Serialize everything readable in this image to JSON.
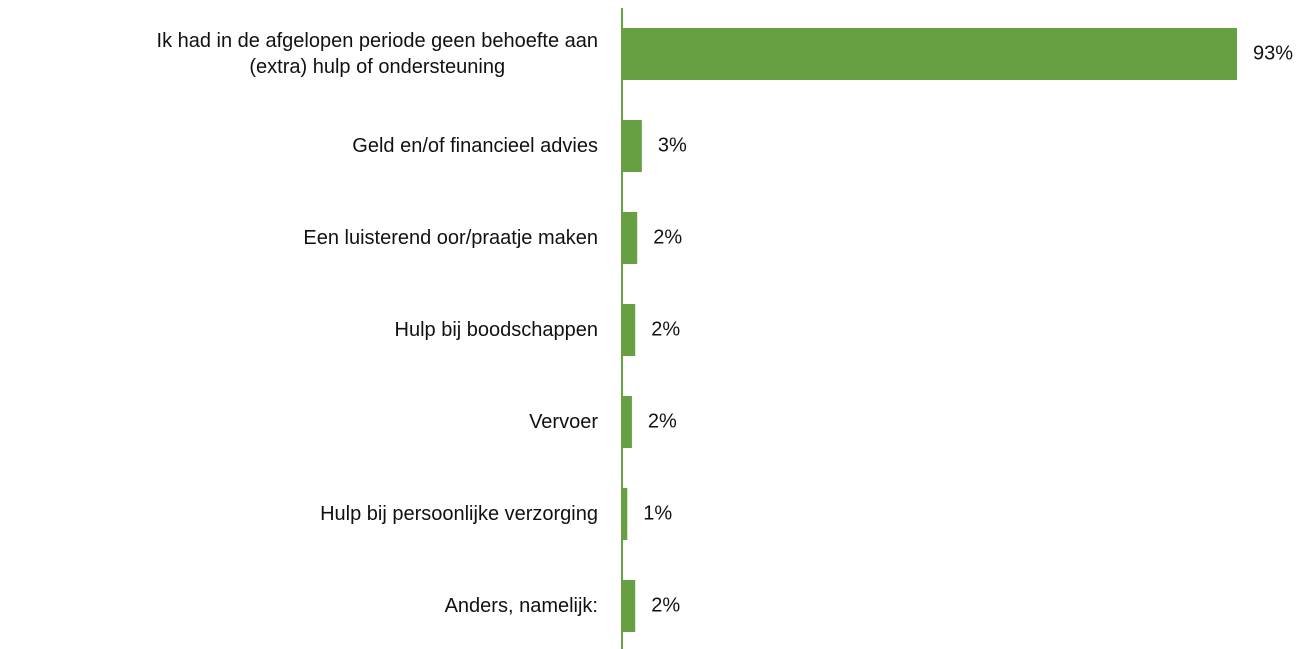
{
  "chart_data": {
    "type": "hbar",
    "categories": [
      "Ik had in de afgelopen periode geen behoefte aan\n(extra) hulp of ondersteuning",
      "Geld en/of financieel advies",
      "Een luisterend oor/praatje maken",
      "Hulp bij boodschappen",
      "Vervoer",
      "Hulp bij persoonlijke verzorging",
      "Anders, namelijk:"
    ],
    "values": [
      93,
      3.0,
      2.3,
      2.0,
      1.5,
      0.8,
      2.0
    ],
    "value_labels": [
      "93%",
      "3%",
      "2%",
      "2%",
      "2%",
      "1%",
      "2%"
    ],
    "color": "#66a042"
  }
}
